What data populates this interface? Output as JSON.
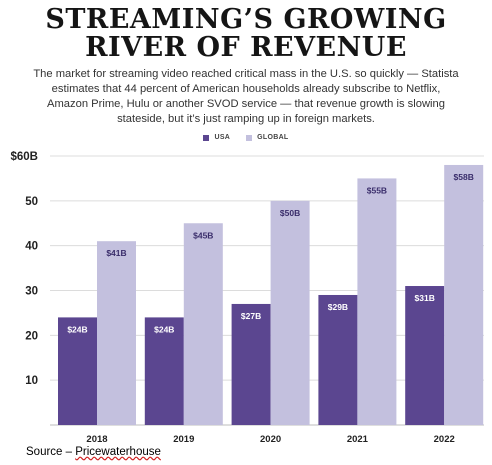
{
  "header": {
    "title_line1": "STREAMING’S GROWING",
    "title_line2": "RIVER OF REVENUE",
    "subtitle_lines": [
      "The market for streaming video reached critical mass in the U.S. so quickly — Statista",
      "estimates that 44 percent of American households already subscribe to Netflix,",
      "Amazon Prime, Hulu or another SVOD service — that revenue growth is slowing",
      "stateside, but it’s just ramping up in foreign markets."
    ]
  },
  "chart_data": {
    "type": "bar",
    "title": "STREAMING’S GROWING RIVER OF REVENUE",
    "categories": [
      "2018",
      "2019",
      "2020",
      "2021",
      "2022"
    ],
    "series": [
      {
        "name": "USA",
        "values": [
          24,
          24,
          27,
          29,
          31
        ],
        "labels": [
          "$24B",
          "$24B",
          "$27B",
          "$29B",
          "$31B"
        ],
        "color": "#5b4690"
      },
      {
        "name": "GLOBAL",
        "values": [
          41,
          45,
          50,
          55,
          58
        ],
        "labels": [
          "$41B",
          "$45B",
          "$50B",
          "$55B",
          "$58B"
        ],
        "color": "#c3c0de"
      }
    ],
    "ylim": [
      0,
      60
    ],
    "yticks": [
      10,
      20,
      30,
      40,
      50,
      60
    ],
    "ytick_labels": [
      "10",
      "20",
      "30",
      "40",
      "50",
      "$60B"
    ],
    "xlabel": "",
    "ylabel": "",
    "grid": true,
    "legend_position": "top-center"
  },
  "footer": {
    "source_prefix": "Source – ",
    "source_name": "Pricewaterhouse"
  }
}
